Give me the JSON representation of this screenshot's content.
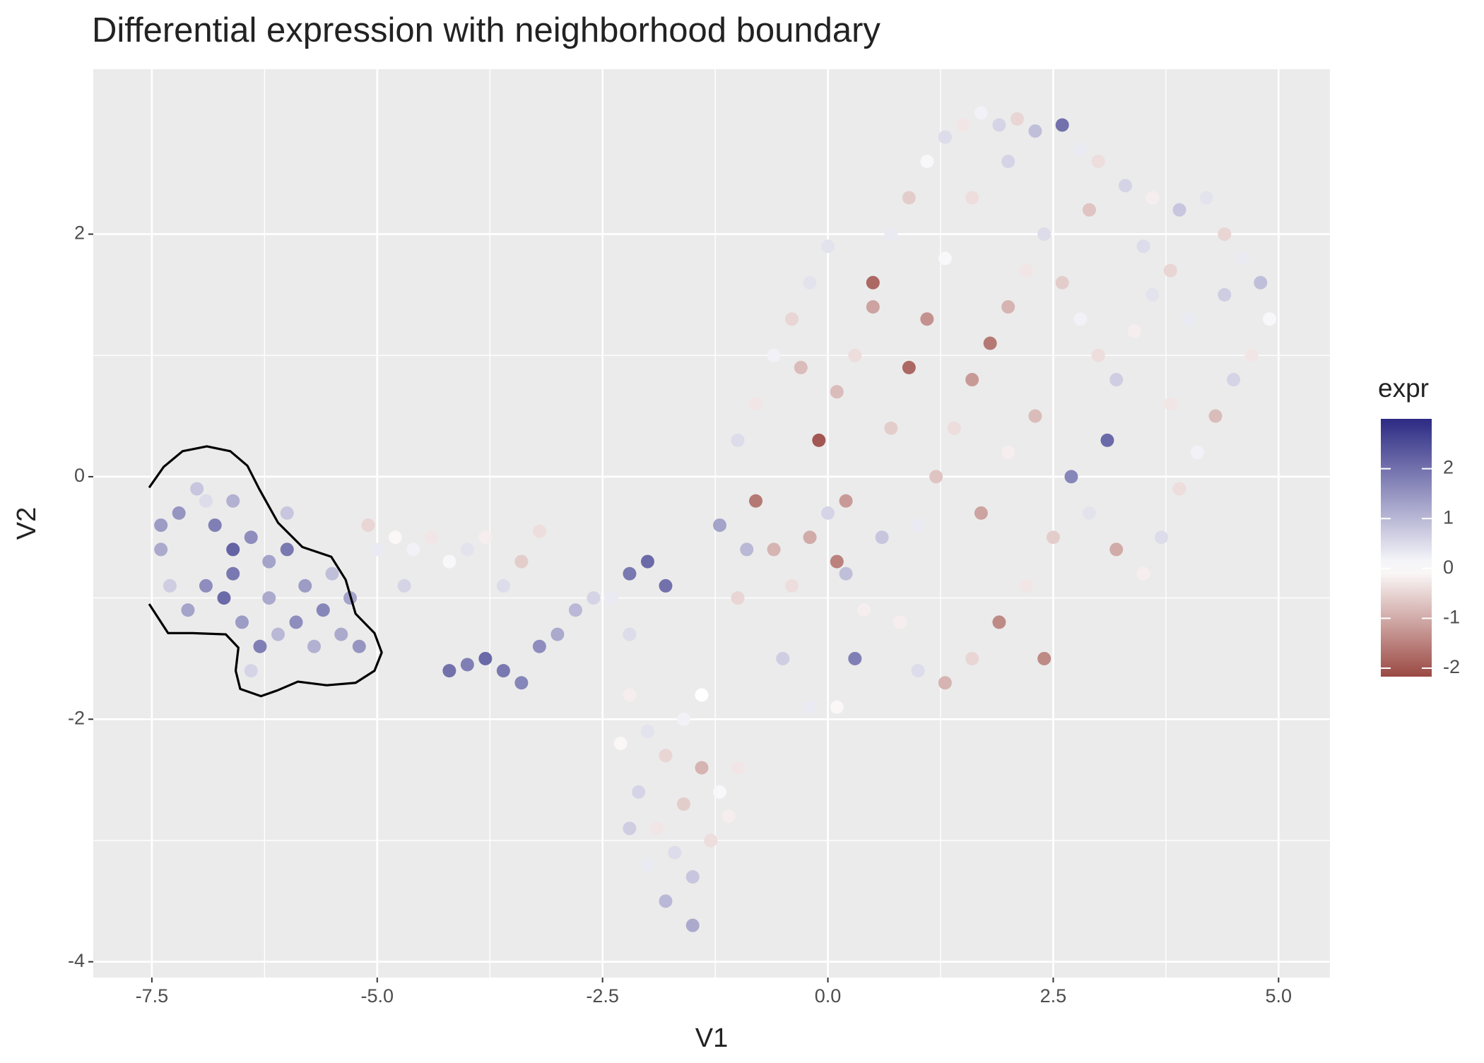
{
  "chart_data": {
    "type": "scatter",
    "title": "Differential expression with neighborhood boundary",
    "x_label": "V1",
    "y_label": "V2",
    "legend_title": "expr",
    "xlim": [
      -8.15,
      5.57
    ],
    "ylim": [
      -4.13,
      3.36
    ],
    "xticks": [
      -7.5,
      {
        "value": -5,
        "label": "-5.0"
      },
      -2.5,
      {
        "value": 0,
        "label": "0.0"
      },
      2.5,
      {
        "value": 5,
        "label": "5.0"
      }
    ],
    "yticks": [
      -4,
      -2,
      0,
      2
    ],
    "xminor": [
      -6.25,
      -3.75,
      -1.25,
      1.25,
      3.75
    ],
    "yminor": [
      -3,
      -1,
      1
    ],
    "grid": true,
    "clim": [
      -2.17,
      3.0
    ],
    "legend_ticks": [
      2,
      1,
      0,
      -1,
      -2
    ],
    "legend_position": "right",
    "colors": {
      "low": "#9b4943",
      "mid": "#ffffff",
      "high": "#2c2a83",
      "boundary": "#000000",
      "panel": "#ebebeb"
    },
    "x": [
      -7.4,
      -7.2,
      -7.0,
      -6.8,
      -6.6,
      -6.4,
      -6.2,
      -6.0,
      -5.8,
      -5.6,
      -5.4,
      -5.2,
      -5.5,
      -6.9,
      -7.1,
      -6.7,
      -6.5,
      -6.3,
      -6.1,
      -5.9,
      -7.3,
      -6.6,
      -6.2,
      -5.7,
      -6.9,
      -6.4,
      -7.4,
      -5.3,
      -6.0,
      -6.6,
      -5.0,
      -4.8,
      -4.6,
      -4.4,
      -4.2,
      -4.0,
      -3.8,
      -3.6,
      -3.4,
      -3.2,
      -5.1,
      -4.7,
      -4.2,
      -4.0,
      -3.8,
      -3.6,
      -3.4,
      -3.2,
      -3.0,
      -2.8,
      -2.6,
      -2.4,
      -2.2,
      -2.0,
      -1.8,
      -2.2,
      -2.2,
      -2.0,
      -1.8,
      -1.6,
      -1.4,
      -1.2,
      -2.1,
      -1.9,
      -1.7,
      -1.5,
      -1.3,
      -1.1,
      -1.8,
      -1.5,
      -2.0,
      -2.2,
      -1.6,
      -1.4,
      -1.0,
      -2.3,
      -1.0,
      -0.8,
      -0.6,
      -0.4,
      -0.2,
      0.0,
      0.2,
      0.4,
      0.3,
      -0.5,
      -0.2,
      0.1,
      -1.2,
      -1.0,
      -0.8,
      -0.6,
      -0.4,
      -0.2,
      -0.1,
      0.1,
      0.3,
      0.5,
      0.5,
      0.7,
      0.9,
      1.1,
      1.3,
      1.5,
      1.7,
      1.9,
      2.1,
      2.3,
      2.6,
      2.8,
      3.0,
      3.3,
      3.6,
      3.9,
      4.2,
      4.4,
      4.6,
      4.8,
      4.9,
      4.7,
      4.5,
      4.3,
      4.1,
      3.9,
      3.7,
      3.5,
      3.2,
      2.9,
      2.7,
      2.5,
      2.2,
      1.9,
      1.6,
      1.3,
      1.0,
      0.8,
      1.0,
      1.2,
      1.4,
      1.6,
      1.8,
      2.0,
      2.2,
      2.4,
      2.6,
      2.8,
      3.0,
      3.2,
      3.4,
      3.6,
      3.8,
      4.0,
      3.1,
      2.3,
      2.0,
      1.7,
      1.1,
      0.9,
      0.7,
      1.3,
      1.6,
      2.0,
      2.9,
      3.5,
      0.0,
      -0.3,
      0.2,
      0.6,
      -0.9,
      4.4,
      3.8,
      2.4,
      0.1
    ],
    "values": [
      -0.6,
      -0.3,
      -0.1,
      -0.4,
      -0.2,
      -0.5,
      -0.7,
      -0.6,
      -0.9,
      -1.1,
      -1.3,
      -1.4,
      -0.8,
      -0.9,
      -1.1,
      -1.0,
      -1.2,
      -1.4,
      -1.3,
      -1.2,
      -0.9,
      -0.8,
      -1.0,
      -1.4,
      -0.2,
      -1.6,
      -0.4,
      -1.0,
      -0.3,
      -0.6,
      -0.6,
      -0.5,
      -0.6,
      -0.5,
      -0.7,
      -0.6,
      -0.5,
      -0.9,
      -0.7,
      -0.45,
      -0.4,
      -0.9,
      -1.6,
      -1.55,
      -1.5,
      -1.6,
      -1.7,
      -1.4,
      -1.3,
      -1.1,
      -1.0,
      -1.0,
      -0.8,
      -0.7,
      -0.9,
      -1.3,
      -1.8,
      -2.1,
      -2.3,
      -2.0,
      -2.4,
      -2.6,
      -2.6,
      -2.9,
      -3.1,
      -3.3,
      -3.0,
      -2.8,
      -3.5,
      -3.7,
      -3.2,
      -2.9,
      -2.7,
      -1.8,
      -2.4,
      -2.2,
      -1.0,
      -0.2,
      -0.6,
      -0.9,
      -0.5,
      -0.3,
      -0.8,
      -1.1,
      -1.5,
      -1.5,
      -1.9,
      -1.9,
      -0.4,
      0.3,
      0.6,
      1.0,
      1.3,
      1.6,
      0.3,
      0.7,
      1.0,
      1.4,
      1.6,
      2.0,
      2.3,
      2.6,
      2.8,
      2.9,
      3.0,
      2.9,
      2.95,
      2.85,
      2.9,
      2.7,
      2.6,
      2.4,
      2.3,
      2.2,
      2.3,
      2.0,
      1.8,
      1.6,
      1.3,
      1.0,
      0.8,
      0.5,
      0.2,
      -0.1,
      -0.5,
      -0.8,
      -0.6,
      -0.3,
      0.0,
      -0.5,
      -0.9,
      -1.2,
      -1.5,
      -1.7,
      -1.6,
      -1.2,
      -0.4,
      0.0,
      0.4,
      0.8,
      1.1,
      1.4,
      1.7,
      2.0,
      1.6,
      1.3,
      1.0,
      0.8,
      1.2,
      1.5,
      1.7,
      1.3,
      0.3,
      0.5,
      0.2,
      -0.3,
      1.3,
      0.9,
      0.4,
      1.8,
      2.3,
      2.6,
      2.2,
      1.9,
      1.9,
      0.9,
      -0.2,
      -0.5,
      -0.6,
      1.5,
      0.6,
      -1.5,
      -0.7
    ],
    "expr": [
      1.2,
      1.5,
      0.8,
      1.8,
      1.1,
      1.6,
      1.3,
      1.9,
      1.4,
      1.7,
      1.2,
      1.5,
      0.9,
      1.6,
      1.3,
      2.1,
      1.4,
      1.8,
      1.0,
      1.6,
      0.7,
      1.9,
      1.2,
      1.1,
      0.5,
      0.6,
      1.4,
      1.3,
      0.8,
      2.2,
      0.3,
      -0.1,
      0.2,
      -0.3,
      0.1,
      0.4,
      -0.2,
      0.5,
      -0.6,
      -0.4,
      -0.5,
      0.6,
      2.0,
      1.8,
      2.1,
      1.9,
      1.7,
      1.6,
      1.2,
      1.0,
      0.6,
      0.3,
      1.9,
      2.1,
      2.0,
      0.5,
      -0.2,
      0.4,
      -0.5,
      0.2,
      -0.9,
      0.1,
      0.6,
      -0.3,
      0.5,
      0.8,
      -0.4,
      -0.2,
      1.0,
      1.2,
      0.3,
      0.7,
      -0.6,
      0.0,
      -0.3,
      -0.1,
      -0.5,
      -1.6,
      -0.9,
      -0.4,
      -1.0,
      0.6,
      0.9,
      -0.2,
      1.8,
      0.7,
      0.3,
      -0.1,
      1.3,
      0.5,
      -0.3,
      0.2,
      -0.5,
      0.4,
      -2.0,
      -0.8,
      -0.4,
      -1.1,
      -1.8,
      0.3,
      -0.6,
      0.1,
      0.5,
      -0.3,
      0.2,
      0.6,
      -0.5,
      0.9,
      2.0,
      0.3,
      -0.4,
      0.6,
      -0.2,
      0.8,
      0.4,
      -0.5,
      0.3,
      0.9,
      0.1,
      -0.3,
      0.6,
      -0.8,
      0.2,
      -0.4,
      0.5,
      -0.2,
      -1.0,
      0.4,
      1.7,
      -0.6,
      -0.3,
      -1.4,
      -0.5,
      -0.9,
      0.5,
      -0.2,
      0.3,
      -0.7,
      -0.4,
      -1.2,
      -1.6,
      -0.9,
      -0.3,
      0.5,
      -0.6,
      0.2,
      -0.4,
      0.7,
      -0.2,
      0.4,
      -0.5,
      0.3,
      2.1,
      -0.8,
      -0.2,
      -1.1,
      -1.3,
      -1.8,
      -0.6,
      0.1,
      -0.4,
      0.6,
      -0.7,
      0.5,
      0.4,
      -0.8,
      -1.2,
      0.8,
      1.0,
      0.7,
      -0.3,
      -1.4,
      -1.5
    ],
    "boundary": {
      "x": [
        -7.53,
        -7.37,
        -7.16,
        -6.89,
        -6.63,
        -6.44,
        -6.31,
        -6.1,
        -5.83,
        -5.51,
        -5.35,
        -5.24,
        -5.03,
        -4.95,
        -5.03,
        -5.24,
        -5.56,
        -5.88,
        -6.1,
        -6.29,
        -6.52,
        -6.57,
        -6.54,
        -6.68,
        -7.05,
        -7.32,
        -7.53
      ],
      "y": [
        -0.09,
        0.08,
        0.21,
        0.25,
        0.21,
        0.09,
        -0.1,
        -0.38,
        -0.58,
        -0.66,
        -0.85,
        -1.13,
        -1.29,
        -1.45,
        -1.6,
        -1.7,
        -1.72,
        -1.69,
        -1.76,
        -1.81,
        -1.75,
        -1.6,
        -1.41,
        -1.3,
        -1.29,
        -1.29,
        -1.05
      ]
    }
  }
}
